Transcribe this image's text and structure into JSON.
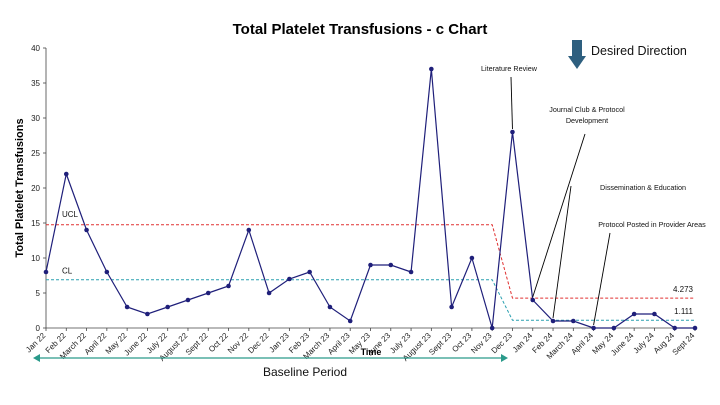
{
  "chart_data": {
    "type": "line",
    "title": "Total Platelet Transfusions - c Chart",
    "xlabel": "Time",
    "ylabel": "Total Platelet Transfusions",
    "ylim": [
      0,
      40
    ],
    "yticks": [
      0,
      5,
      10,
      15,
      20,
      25,
      30,
      35,
      40
    ],
    "categories": [
      "Jan 22",
      "Feb 22",
      "March 22",
      "April 22",
      "May 22",
      "June 22",
      "July 22",
      "August 22",
      "Sept 22",
      "Oct 22",
      "Nov 22",
      "Dec 22",
      "Jan 23",
      "Feb 23",
      "March 23",
      "April 23",
      "May 23",
      "June 23",
      "July 23",
      "August 23",
      "Sept 23",
      "Oct 23",
      "Nov 23",
      "Dec 23",
      "Jan 24",
      "Feb 24",
      "March 24",
      "April 24",
      "May 24",
      "June 24",
      "July 24",
      "Aug 24",
      "Sept 24"
    ],
    "series": [
      {
        "values": [
          8,
          22,
          14,
          8,
          3,
          2,
          3,
          4,
          5,
          6,
          14,
          5,
          7,
          8,
          3,
          1,
          9,
          9,
          8,
          37,
          3,
          10,
          0,
          28,
          4,
          1,
          1,
          0,
          0,
          2,
          2,
          0,
          0
        ],
        "color": "#1f1f7a"
      }
    ],
    "control_limits": {
      "ucl": {
        "label": "UCL",
        "baseline": 14.75,
        "post": 4.273,
        "post_label": "4.273",
        "color": "#e03030"
      },
      "cl": {
        "label": "CL",
        "baseline": 6.9,
        "post": 1.111,
        "post_label": "1.111",
        "color": "#2aa0b0"
      }
    },
    "annotations": [
      {
        "text": [
          "Literature Review"
        ],
        "point_index": 23
      },
      {
        "text": [
          "Journal Club & Protocol",
          "Development"
        ],
        "point_index": 24
      },
      {
        "text": [
          "Dissemination & Education"
        ],
        "point_index": 25
      },
      {
        "text": [
          "Protocol Posted in Provider Areas"
        ],
        "point_index": 27
      }
    ],
    "desired_direction": {
      "label": "Desired Direction",
      "arrow": "down",
      "color": "#2e5f7f"
    },
    "baseline_period": {
      "label": "Baseline Period"
    }
  }
}
